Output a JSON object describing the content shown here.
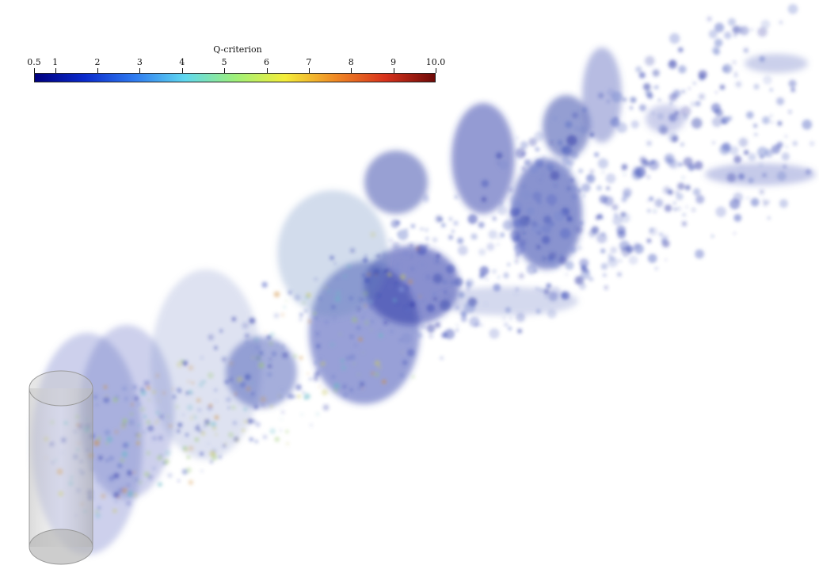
{
  "colorbar": {
    "title": "Q-criterion",
    "min": 0.5,
    "max": 10.0,
    "ticks": [
      "0.5",
      "1",
      "2",
      "3",
      "4",
      "5",
      "6",
      "7",
      "8",
      "9",
      "10.0"
    ],
    "tick_values": [
      0.5,
      1,
      2,
      3,
      4,
      5,
      6,
      7,
      8,
      9,
      10.0
    ],
    "colors": [
      "#00007f",
      "#0a2acc",
      "#2f7bf0",
      "#5fd8f0",
      "#9ef07a",
      "#f4ee3a",
      "#f08a24",
      "#d8321c",
      "#6e0a08"
    ]
  },
  "scene": {
    "object": "cylinder",
    "isosurface_color": "#3a4ab0"
  }
}
